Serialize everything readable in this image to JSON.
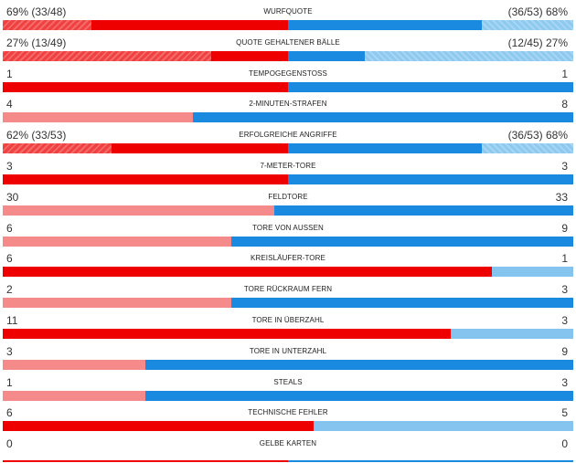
{
  "colors": {
    "home_strong": "#ee0000",
    "home_weak": "#f58a8a",
    "away_strong": "#1a8ae0",
    "away_weak": "#85c4ef",
    "home_ratio": "#f04040",
    "away_ratio": "#8ec9f0"
  },
  "stats": [
    {
      "label": "WURFQUOTE",
      "left": "69% (33/48)",
      "right": "(36/53) 68%",
      "kind": "ratio",
      "home_frac": 0.69,
      "away_frac": 0.68
    },
    {
      "label": "QUOTE GEHALTENER BÄLLE",
      "left": "27% (13/49)",
      "right": "(12/45) 27%",
      "kind": "ratio",
      "home_frac": 0.27,
      "away_frac": 0.27
    },
    {
      "label": "TEMPOGEGENSTOSS",
      "left": "1",
      "right": "1",
      "kind": "count",
      "home": 1,
      "away": 1
    },
    {
      "label": "2-MINUTEN-STRAFEN",
      "left": "4",
      "right": "8",
      "kind": "count",
      "home": 4,
      "away": 8
    },
    {
      "label": "ERFOLGREICHE ANGRIFFE",
      "left": "62% (33/53)",
      "right": "(36/53) 68%",
      "kind": "ratio",
      "home_frac": 0.62,
      "away_frac": 0.68
    },
    {
      "label": "7-METER-TORE",
      "left": "3",
      "right": "3",
      "kind": "count",
      "home": 3,
      "away": 3
    },
    {
      "label": "FELDTORE",
      "left": "30",
      "right": "33",
      "kind": "count",
      "home": 30,
      "away": 33
    },
    {
      "label": "TORE VON AUSSEN",
      "left": "6",
      "right": "9",
      "kind": "count",
      "home": 6,
      "away": 9
    },
    {
      "label": "KREISLÄUFER-TORE",
      "left": "6",
      "right": "1",
      "kind": "count",
      "home": 6,
      "away": 1
    },
    {
      "label": "TORE RÜCKRAUM FERN",
      "left": "2",
      "right": "3",
      "kind": "count",
      "home": 2,
      "away": 3
    },
    {
      "label": "TORE IN ÜBERZAHL",
      "left": "11",
      "right": "3",
      "kind": "count",
      "home": 11,
      "away": 3
    },
    {
      "label": "TORE IN UNTERZAHL",
      "left": "3",
      "right": "9",
      "kind": "count",
      "home": 3,
      "away": 9
    },
    {
      "label": "STEALS",
      "left": "1",
      "right": "3",
      "kind": "count",
      "home": 1,
      "away": 3
    },
    {
      "label": "TECHNISCHE FEHLER",
      "left": "6",
      "right": "5",
      "kind": "count",
      "home": 6,
      "away": 5
    },
    {
      "label": "GELBE KARTEN",
      "left": "0",
      "right": "0",
      "kind": "count",
      "home": 0,
      "away": 0
    }
  ]
}
